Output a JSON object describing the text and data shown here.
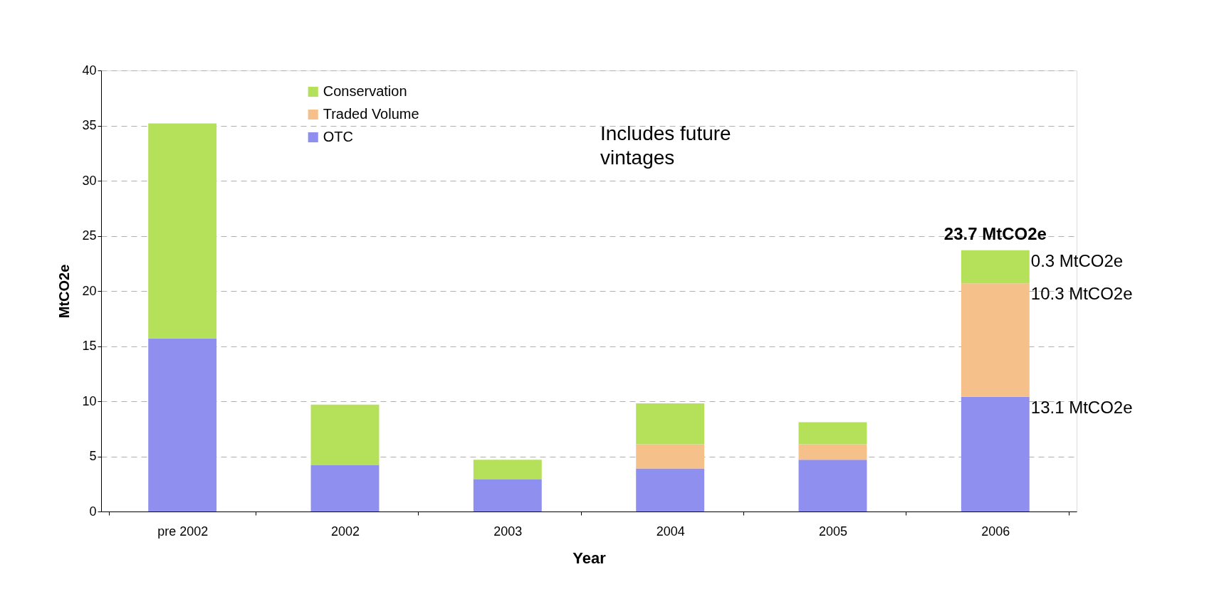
{
  "chart_data": {
    "type": "bar",
    "stacked": true,
    "xlabel": "Year",
    "ylabel": "MtCO2e",
    "categories": [
      "pre 2002",
      "2002",
      "2003",
      "2004",
      "2005",
      "2006"
    ],
    "series": [
      {
        "name": "OTC",
        "color": "#8f8ff0",
        "values": [
          15.7,
          4.2,
          2.9,
          3.9,
          4.7,
          10.4
        ]
      },
      {
        "name": "Traded Volume",
        "color": "#f5c08a",
        "values": [
          0,
          0,
          0,
          2.2,
          1.4,
          10.3
        ]
      },
      {
        "name": "Conservation",
        "color": "#b5e05a",
        "values": [
          19.5,
          5.5,
          1.8,
          3.7,
          2.0,
          3.0
        ]
      }
    ],
    "ylim": [
      0,
      40
    ],
    "yticks": [
      0,
      5,
      10,
      15,
      20,
      25,
      30,
      35,
      40
    ],
    "grid": "y",
    "legend": "top left",
    "totals": [
      null,
      null,
      null,
      null,
      null,
      "23.7 MtCO2e"
    ],
    "annotations": [
      {
        "text": "13.1 MtCO2e",
        "x": "2006",
        "y": 10.4
      },
      {
        "text": "10.3 MtCO2e",
        "x": "2006",
        "y": 20.7
      },
      {
        "text": "0.3 MtCO2e",
        "x": "2006",
        "y": 23.7
      },
      "Includes future vintages"
    ]
  }
}
